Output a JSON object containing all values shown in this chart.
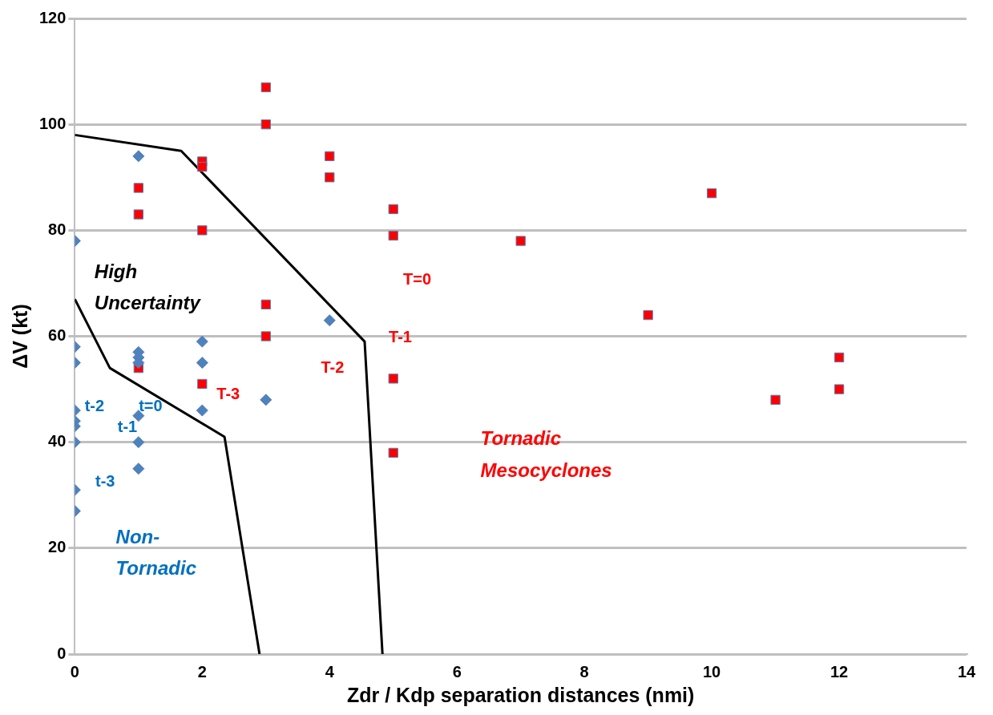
{
  "chart_data": {
    "type": "scatter",
    "xlabel": "Zdr / Kdp separation distances (nmi)",
    "ylabel": "ΔV (kt)",
    "xlim": [
      0,
      14
    ],
    "xticks": [
      0,
      2,
      4,
      6,
      8,
      10,
      12,
      14
    ],
    "ylim": [
      0,
      120
    ],
    "yticks": [
      0,
      20,
      40,
      60,
      80,
      100,
      120
    ],
    "grid": "y",
    "legend": false,
    "series": [
      {
        "color": "#4f81bd",
        "marker": "diamond",
        "x": [
          0,
          0,
          0,
          0,
          0,
          0,
          0,
          0,
          0,
          1,
          1,
          1,
          1,
          1,
          1,
          1,
          2,
          2,
          2,
          3,
          4
        ],
        "values": [
          78,
          58,
          55,
          46,
          44,
          43,
          40,
          31,
          27,
          94,
          57,
          56,
          55,
          45,
          40,
          35,
          59,
          55,
          46,
          48,
          63
        ]
      },
      {
        "color": "#ff0000",
        "marker": "square",
        "x": [
          1,
          1,
          1,
          2,
          2,
          2,
          2,
          3,
          3,
          3,
          3,
          4,
          4,
          5,
          5,
          5,
          5,
          7,
          9,
          10,
          11,
          12,
          12
        ],
        "values": [
          88,
          83,
          54,
          93,
          92,
          80,
          51,
          107,
          100,
          66,
          60,
          94,
          90,
          84,
          79,
          52,
          38,
          78,
          64,
          87,
          48,
          56,
          50
        ]
      },
      {
        "type": "line",
        "color": "#000000",
        "marker": "none",
        "line_style": "solid",
        "x": [
          0,
          1.67,
          4.55,
          4.83
        ],
        "values": [
          98,
          95,
          59,
          0
        ]
      },
      {
        "type": "line",
        "color": "#000000",
        "marker": "none",
        "line_style": "solid",
        "x": [
          0,
          0.55,
          2.35,
          2.9
        ],
        "values": [
          67,
          54,
          41,
          0
        ]
      }
    ],
    "annotations": [
      "High Uncertainty",
      "Non-Tornadic",
      "Tornadic Mesocyclones",
      "t-2",
      "t=0",
      "t-1",
      "t-3",
      "T-3",
      "T-2",
      "T-1",
      "T=0"
    ]
  }
}
